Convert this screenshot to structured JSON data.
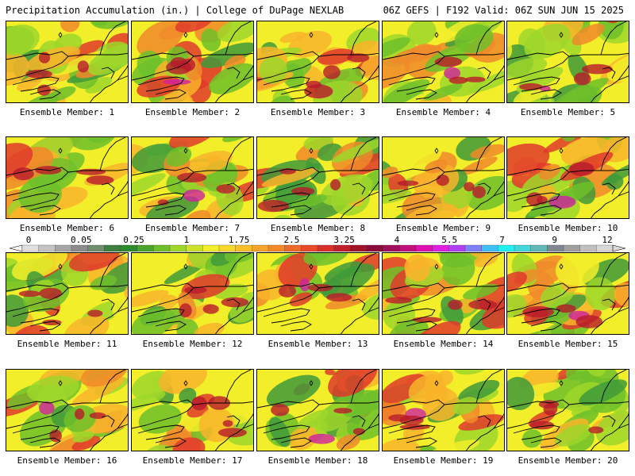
{
  "header": {
    "title": "Precipitation Accumulation (in.) | College of DuPage NEXLAB",
    "run_info": "06Z GEFS | F192 Valid: 06Z SUN JUN 15 2025"
  },
  "panels": [
    {
      "label": "Ensemble Member: 1"
    },
    {
      "label": "Ensemble Member: 2"
    },
    {
      "label": "Ensemble Member: 3"
    },
    {
      "label": "Ensemble Member: 4"
    },
    {
      "label": "Ensemble Member: 5"
    },
    {
      "label": "Ensemble Member: 6"
    },
    {
      "label": "Ensemble Member: 7"
    },
    {
      "label": "Ensemble Member: 8"
    },
    {
      "label": "Ensemble Member: 9"
    },
    {
      "label": "Ensemble Member: 10"
    },
    {
      "label": "Ensemble Member: 11"
    },
    {
      "label": "Ensemble Member: 12"
    },
    {
      "label": "Ensemble Member: 13"
    },
    {
      "label": "Ensemble Member: 14"
    },
    {
      "label": "Ensemble Member: 15"
    },
    {
      "label": "Ensemble Member: 16"
    },
    {
      "label": "Ensemble Member: 17"
    },
    {
      "label": "Ensemble Member: 18"
    },
    {
      "label": "Ensemble Member: 19"
    },
    {
      "label": "Ensemble Member: 20"
    }
  ],
  "colorbar": {
    "tick_labels": [
      "0",
      "0.05",
      "0.25",
      "1",
      "1.75",
      "2.5",
      "3.25",
      "4",
      "5.5",
      "7",
      "9",
      "12"
    ],
    "colors": [
      "#e0e0e0",
      "#c4c4c4",
      "#a6a6a6",
      "#8c8c8c",
      "#6e8e6e",
      "#3f7f3f",
      "#2d8a2d",
      "#4aa32b",
      "#6fbf2a",
      "#9ed62a",
      "#cde32a",
      "#f2ee2a",
      "#f8d82a",
      "#f9c02a",
      "#f7a52a",
      "#f38a2a",
      "#ee6a2a",
      "#e84a2a",
      "#d9302a",
      "#c0202a",
      "#a0142a",
      "#8a0a3a",
      "#a0105a",
      "#c0107a",
      "#e010b0",
      "#e020e0",
      "#b040f0",
      "#8080f8",
      "#40c0f8",
      "#20f0f0",
      "#40d8d8",
      "#60b8b8",
      "#808890",
      "#a0a0a0",
      "#c0c0c0",
      "#d8d8d8"
    ]
  }
}
